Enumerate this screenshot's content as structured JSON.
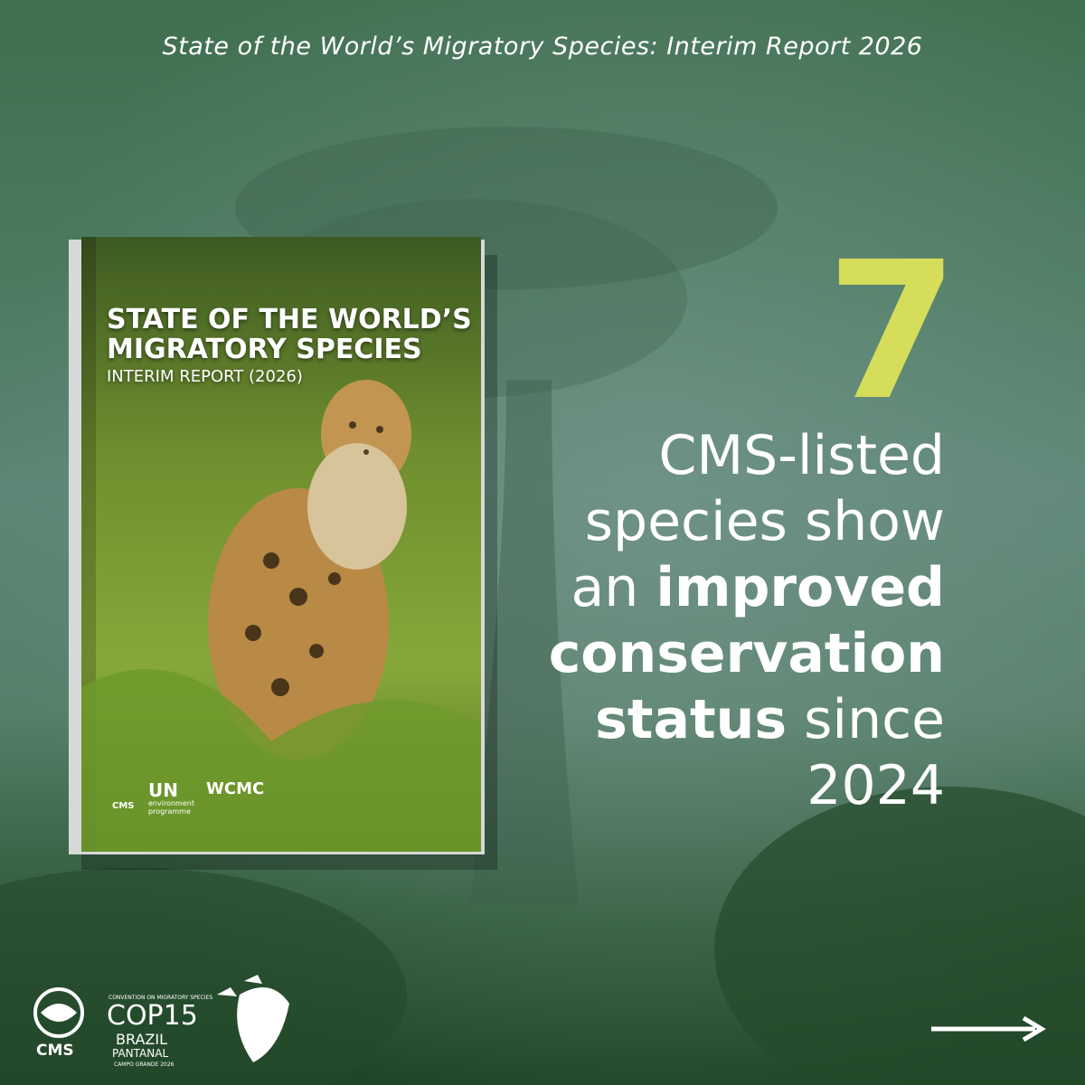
{
  "header": {
    "title": "State of the World’s Migratory Species: Interim Report 2026"
  },
  "book": {
    "title_lines": [
      "STATE OF THE WORLD’S",
      "MIGRATORY SPECIES"
    ],
    "subtitle": "INTERIM REPORT (2026)",
    "logos": {
      "cms": "CMS",
      "un": "UN",
      "unep": "environment programme",
      "wcmc": "WCMC"
    }
  },
  "stat": {
    "number": "7",
    "lines": [
      [
        {
          "text": "CMS-listed",
          "bold": false
        }
      ],
      [
        {
          "text": "species show",
          "bold": false
        }
      ],
      [
        {
          "text": "an ",
          "bold": false
        },
        {
          "text": "improved",
          "bold": true
        }
      ],
      [
        {
          "text": "conservation",
          "bold": true
        }
      ],
      [
        {
          "text": "status",
          "bold": true
        },
        {
          "text": " since",
          "bold": false
        }
      ],
      [
        {
          "text": "2024",
          "bold": false
        }
      ]
    ]
  },
  "footer": {
    "cms": "CMS",
    "cop_caption": "CONVENTION ON MIGRATORY SPECIES",
    "cop": "COP15",
    "country": "BRAZIL",
    "region": "PANTANAL",
    "city": "CAMPO GRANDE 2026"
  }
}
